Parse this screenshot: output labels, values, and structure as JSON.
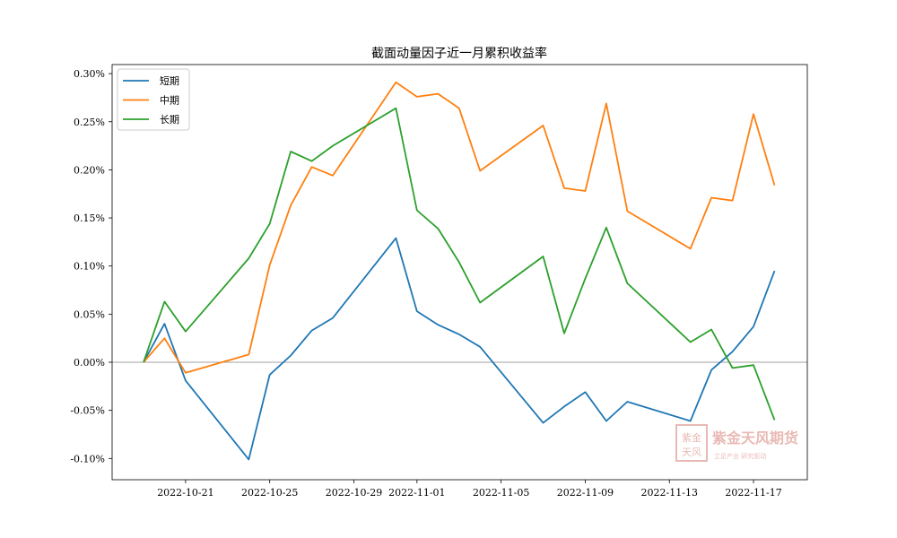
{
  "chart_data": {
    "type": "line",
    "title": "截面动量因子近一月累积收益率",
    "xlabel": "",
    "ylabel": "",
    "ylim": [
      -0.12,
      0.31
    ],
    "y_unit": "%",
    "grid": false,
    "legend_position": "upper left",
    "x": [
      "2022-10-19",
      "2022-10-20",
      "2022-10-21",
      "2022-10-24",
      "2022-10-25",
      "2022-10-26",
      "2022-10-27",
      "2022-10-28",
      "2022-10-31",
      "2022-11-01",
      "2022-11-02",
      "2022-11-03",
      "2022-11-04",
      "2022-11-07",
      "2022-11-08",
      "2022-11-09",
      "2022-11-10",
      "2022-11-11",
      "2022-11-14",
      "2022-11-15",
      "2022-11-16",
      "2022-11-17",
      "2022-11-18"
    ],
    "x_ticks": [
      "2022-10-21",
      "2022-10-25",
      "2022-10-29",
      "2022-11-01",
      "2022-11-05",
      "2022-11-09",
      "2022-11-13",
      "2022-11-17"
    ],
    "y_ticks": [
      "-0.10%",
      "-0.05%",
      "0.00%",
      "0.05%",
      "0.10%",
      "0.15%",
      "0.20%",
      "0.25%",
      "0.30%"
    ],
    "y_tick_values": [
      -0.1,
      -0.05,
      0.0,
      0.05,
      0.1,
      0.15,
      0.2,
      0.25,
      0.3
    ],
    "series": [
      {
        "name": "短期",
        "color": "#1f77b4",
        "values": [
          0.0,
          0.04,
          -0.019,
          -0.101,
          -0.013,
          0.007,
          0.033,
          0.046,
          0.129,
          0.053,
          0.039,
          0.029,
          0.016,
          -0.063,
          -0.046,
          -0.031,
          -0.061,
          -0.041,
          -0.061,
          -0.008,
          0.011,
          0.037,
          0.095
        ]
      },
      {
        "name": "中期",
        "color": "#ff7f0e",
        "values": [
          0.0,
          0.025,
          -0.011,
          0.008,
          0.101,
          0.163,
          0.203,
          0.194,
          0.291,
          0.276,
          0.279,
          0.264,
          0.199,
          0.246,
          0.181,
          0.178,
          0.269,
          0.157,
          0.118,
          0.171,
          0.168,
          0.258,
          0.184
        ]
      },
      {
        "name": "长期",
        "color": "#2ca02c",
        "values": [
          0.0,
          0.063,
          0.032,
          0.108,
          0.144,
          0.219,
          0.209,
          0.225,
          0.264,
          0.158,
          0.139,
          0.104,
          0.062,
          0.11,
          0.03,
          0.087,
          0.14,
          0.082,
          0.021,
          0.034,
          -0.006,
          -0.003,
          -0.06
        ]
      }
    ],
    "annotations": [
      "zero reference line at 0.00%"
    ]
  },
  "watermark": {
    "seal_text": "紫金天风",
    "name": "紫金天风期货",
    "slogan": "立足产业 研究驱动"
  }
}
